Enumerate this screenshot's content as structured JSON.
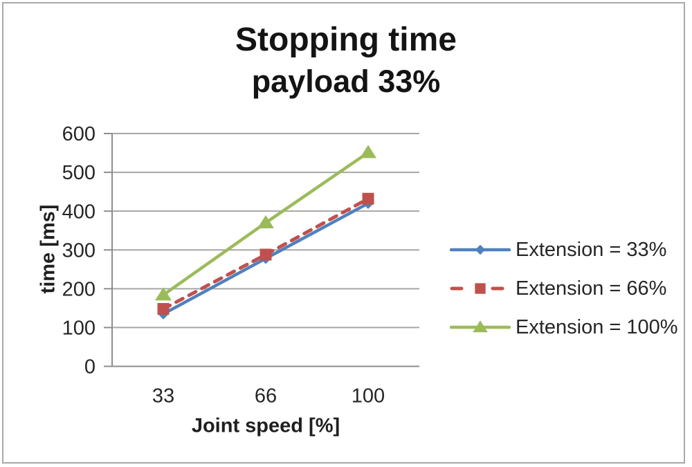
{
  "chart_data": {
    "type": "line",
    "title": "Stopping time",
    "subtitle": "payload 33%",
    "xlabel": "Joint speed [%]",
    "ylabel": "time [ms]",
    "categories": [
      "33",
      "66",
      "100"
    ],
    "y_ticks": [
      0,
      100,
      200,
      300,
      400,
      500,
      600
    ],
    "ylim": [
      0,
      600
    ],
    "grid": true,
    "legend_position": "right",
    "series": [
      {
        "name": "Extension = 33%",
        "values": [
          135,
          278,
          420
        ],
        "color": "#4f81bd",
        "marker": "diamond",
        "dash": "solid"
      },
      {
        "name": "Extension = 66%",
        "values": [
          148,
          288,
          432
        ],
        "color": "#c0504d",
        "marker": "square",
        "dash": "dashed"
      },
      {
        "name": "Extension = 100%",
        "values": [
          184,
          370,
          551
        ],
        "color": "#9bbb59",
        "marker": "triangle",
        "dash": "solid"
      }
    ],
    "colors": {
      "gridline": "#a6a6a6",
      "axis": "#8e8e8e",
      "text": "#262626",
      "frame_border": "#a8a8a8"
    }
  }
}
